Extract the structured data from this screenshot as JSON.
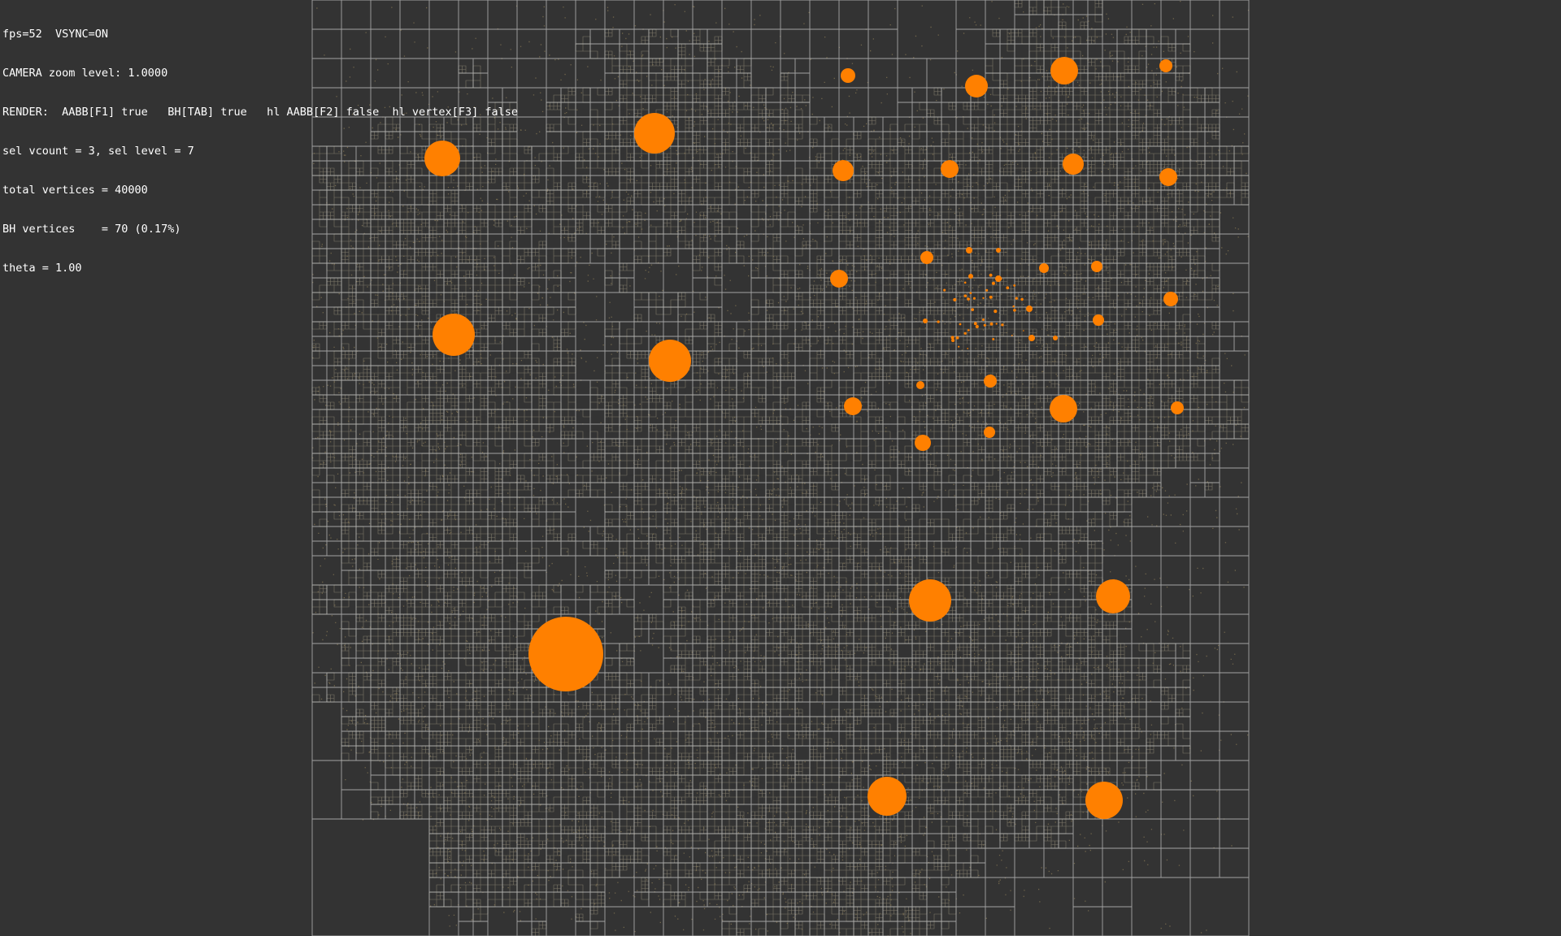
{
  "hud": {
    "fps_line": "fps=52  VSYNC=ON",
    "camera_line": "CAMERA zoom level: 1.0000",
    "render_line": "RENDER:  AABB[F1] true   BH[TAB] true   hl AABB[F2] false  hl vertex[F3] false",
    "sel_line": "sel vcount = 3, sel level = 7",
    "total_line": "total vertices = 40000",
    "bh_line": "BH vertices    = 70 (0.17%)",
    "theta_line": "theta = 1.00"
  },
  "stats": {
    "fps": 52,
    "vsync": true,
    "zoom": 1.0,
    "render_aabb": true,
    "render_bh": true,
    "highlight_aabb": false,
    "highlight_vertex": false,
    "sel_vcount": 3,
    "sel_level": 7,
    "total_vertices": 40000,
    "bh_vertices": 70,
    "bh_percent": 0.17,
    "theta": 1.0
  },
  "colors": {
    "background": "#333333",
    "grid_line": "#c9c9c9",
    "dense_grid": "#b8ad92",
    "particle": "#8a7a55",
    "bh_node": "#ff8000",
    "hud_text": "#ffffff"
  }
}
